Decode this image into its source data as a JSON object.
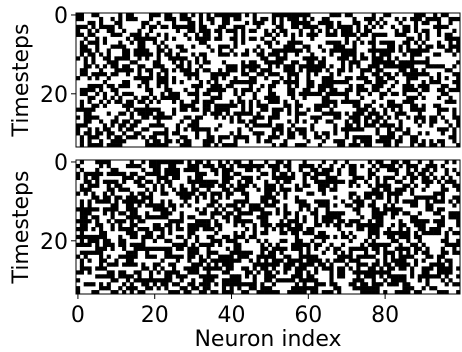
{
  "chart_data": [
    {
      "type": "heatmap",
      "ylabel": "Timesteps",
      "xlabel": "",
      "xlim": [
        -0.5,
        99.5
      ],
      "ylim": [
        33.5,
        -0.5
      ],
      "yticks": [
        0,
        20
      ],
      "xticks": [],
      "grid": false,
      "legend": "none",
      "colors": {
        "on": "#000000",
        "off": "#ffffff"
      },
      "shape": [
        34,
        100
      ],
      "density": 0.45,
      "seed": 1337
    },
    {
      "type": "heatmap",
      "ylabel": "Timesteps",
      "xlabel": "Neuron index",
      "xlim": [
        -0.5,
        99.5
      ],
      "ylim": [
        33.5,
        -0.5
      ],
      "yticks": [
        0,
        20
      ],
      "xticks": [
        0,
        20,
        40,
        60,
        80
      ],
      "grid": false,
      "legend": "none",
      "colors": {
        "on": "#000000",
        "off": "#ffffff"
      },
      "shape": [
        34,
        100
      ],
      "density": 0.5,
      "seed": 4242
    }
  ]
}
